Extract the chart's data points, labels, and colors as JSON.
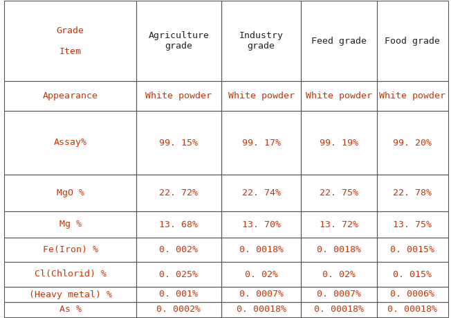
{
  "headers": [
    "Grade\n\nItem",
    "Agriculture\ngrade",
    "Industry\ngrade",
    "Feed grade",
    "Food grade"
  ],
  "rows": [
    [
      "Appearance",
      "White powder",
      "White powder",
      "White powder",
      "White powder"
    ],
    [
      "Assay%",
      "99. 15%",
      "99. 17%",
      "99. 19%",
      "99. 20%"
    ],
    [
      "MgO %",
      "22. 72%",
      "22. 74%",
      "22. 75%",
      "22. 78%"
    ],
    [
      "Mg %",
      "13. 68%",
      "13. 70%",
      "13. 72%",
      "13. 75%"
    ],
    [
      "Fe(Iron) %",
      "0. 002%",
      "0. 0018%",
      "0. 0018%",
      "0. 0015%"
    ],
    [
      "Cl(Chlorid) %",
      "0. 025%",
      "0. 02%",
      "0. 02%",
      "0. 015%"
    ],
    [
      "(Heavy metal) %",
      "0. 001%",
      "0. 0007%",
      "0. 0007%",
      "0. 0006%"
    ],
    [
      "As %",
      "0. 0002%",
      "0. 00018%",
      "0. 00018%",
      "0. 00018%"
    ]
  ],
  "red_color": "#CC3300",
  "dark_color": "#222222",
  "border_color": "#555555",
  "background_color": "#FFFFFF",
  "fig_width": 6.52,
  "fig_height": 4.59,
  "font_size": 9.5,
  "header_font_size": 9.5
}
